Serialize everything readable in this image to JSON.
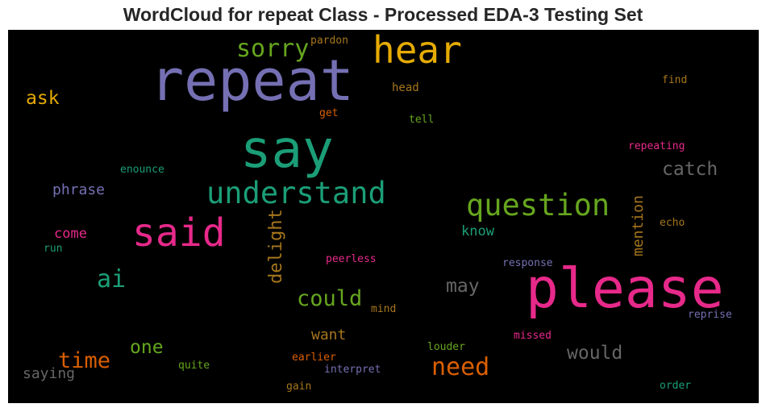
{
  "title": "WordCloud for repeat Class - Processed EDA-3 Testing Set",
  "words": {
    "repeat": {
      "text": "repeat",
      "color": "#7570b3"
    },
    "please": {
      "text": "please",
      "color": "#e7298a"
    },
    "say": {
      "text": "say",
      "color": "#1b9e77"
    },
    "hear": {
      "text": "hear",
      "color": "#e6ab02"
    },
    "understand": {
      "text": "understand",
      "color": "#1b9e77"
    },
    "said": {
      "text": "said",
      "color": "#e7298a"
    },
    "question": {
      "text": "question",
      "color": "#66a61e"
    },
    "sorry": {
      "text": "sorry",
      "color": "#66a61e"
    },
    "catch": {
      "text": "catch",
      "color": "#666666"
    },
    "need": {
      "text": "need",
      "color": "#d95f02"
    },
    "could": {
      "text": "could",
      "color": "#66a61e"
    },
    "ai": {
      "text": "ai",
      "color": "#1b9e77"
    },
    "time": {
      "text": "time",
      "color": "#d95f02"
    },
    "would": {
      "text": "would",
      "color": "#666666"
    },
    "may": {
      "text": "may",
      "color": "#666666"
    },
    "one": {
      "text": "one",
      "color": "#66a61e"
    },
    "ask": {
      "text": "ask",
      "color": "#e6ab02"
    },
    "delight": {
      "text": "delight",
      "color": "#a6761d"
    },
    "mention": {
      "text": "mention",
      "color": "#a6761d"
    },
    "phrase": {
      "text": "phrase",
      "color": "#7570b3"
    },
    "saying": {
      "text": "saying",
      "color": "#666666"
    },
    "want": {
      "text": "want",
      "color": "#a6761d"
    },
    "come": {
      "text": "come",
      "color": "#e7298a"
    },
    "know": {
      "text": "know",
      "color": "#1b9e77"
    },
    "pardon": {
      "text": "pardon",
      "color": "#a6761d"
    },
    "head": {
      "text": "head",
      "color": "#a6761d"
    },
    "get": {
      "text": "get",
      "color": "#d95f02"
    },
    "tell": {
      "text": "tell",
      "color": "#66a61e"
    },
    "find": {
      "text": "find",
      "color": "#a6761d"
    },
    "repeating": {
      "text": "repeating",
      "color": "#e7298a"
    },
    "enounce": {
      "text": "enounce",
      "color": "#1b9e77"
    },
    "echo": {
      "text": "echo",
      "color": "#a6761d"
    },
    "run": {
      "text": "run",
      "color": "#1b9e77"
    },
    "peerless": {
      "text": "peerless",
      "color": "#e7298a"
    },
    "response": {
      "text": "response",
      "color": "#7570b3"
    },
    "reprise": {
      "text": "reprise",
      "color": "#7570b3"
    },
    "mind": {
      "text": "mind",
      "color": "#a6761d"
    },
    "missed": {
      "text": "missed",
      "color": "#e7298a"
    },
    "louder": {
      "text": "louder",
      "color": "#66a61e"
    },
    "earlier": {
      "text": "earlier",
      "color": "#d95f02"
    },
    "quite": {
      "text": "quite",
      "color": "#66a61e"
    },
    "interpret": {
      "text": "interpret",
      "color": "#7570b3"
    },
    "gain": {
      "text": "gain",
      "color": "#a6761d"
    },
    "order": {
      "text": "order",
      "color": "#1b9e77"
    }
  }
}
